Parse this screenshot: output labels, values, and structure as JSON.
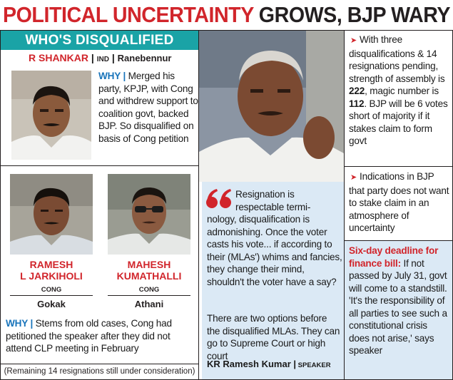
{
  "headline": {
    "part1": "POLITICAL UNCERTAINTY",
    "part2": " GROWS, BJP WARY"
  },
  "banner": "WHO'S DISQUALIFIED",
  "shankar": {
    "name": "R SHANKAR",
    "party": "IND",
    "place": "Ranebennur",
    "why_label": "WHY |",
    "why_text": " Merged his party, KPJP, with Cong and withdrew support to coalition govt, backed BJP. So disqualified on basis of Cong petition"
  },
  "jarkiholi": {
    "name_line1": "RAMESH",
    "name_line2": "L JARKIHOLI",
    "party": "CONG",
    "place": "Gokak"
  },
  "kumathalli": {
    "name_line1": "MAHESH",
    "name_line2": "KUMATHALLI",
    "party": "CONG",
    "place": "Athani"
  },
  "cong_why": {
    "why_label": "WHY |",
    "why_text": " Stems from old cases, Cong had petitioned the speaker after they did not attend CLP meeting in February"
  },
  "remaining": "(Remaining 14 resignations still under consideration)",
  "quote": {
    "line1": "Resignation is",
    "line2": "respectable termi-",
    "line3": "nology, disqualification is admonishing. Once the voter casts his vote... if according to their (MLAs') whims and fancies, they change their mind, shouldn't the voter have a say?",
    "options": "There are two options before the disqualified MLAs. They can go to Supreme Court or high court",
    "speaker_name": "KR Ramesh Kumar |",
    "speaker_title": " SPEAKER"
  },
  "right": {
    "point1_a": "With three disqualifications & 14 resignations pending, strength of assembly is ",
    "strength": "222",
    "point1_b": ", magic number is ",
    "magic": "112",
    "point1_c": ". BJP will be 6 votes short of majority if it stakes claim to form govt",
    "point2": "Indications in BJP that party does not want to stake claim in an atmosphere of uncertainty",
    "deadline_title": "Six-day deadline for finance bill:",
    "deadline_text": " If not passed by July 31, govt will come to a standstill. 'It's the responsibility of all parties to see such a constitutional crisis does not arise,' says speaker"
  },
  "colors": {
    "red": "#d1252b",
    "teal": "#1aa3a6",
    "blue": "#1a75bb",
    "light_blue": "#dbe9f5",
    "dark": "#231f20"
  }
}
